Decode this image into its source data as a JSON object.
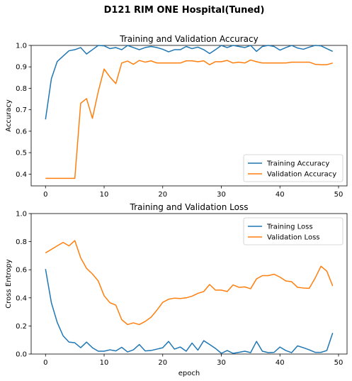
{
  "figure": {
    "suptitle": "D121 RIM ONE Hospital(Tuned)"
  },
  "chart_data": [
    {
      "type": "line",
      "title": "Training and Validation Accuracy",
      "xlabel": "",
      "ylabel": "Accuracy",
      "xlim": [
        -2.45,
        51.45
      ],
      "ylim": [
        0.345,
        1.0
      ],
      "xticks": [
        0,
        10,
        20,
        30,
        40,
        50
      ],
      "yticks": [
        0.4,
        0.5,
        0.6,
        0.7,
        0.8,
        0.9,
        1.0
      ],
      "xtick_labels": [
        "0",
        "10",
        "20",
        "30",
        "40",
        "50"
      ],
      "ytick_labels": [
        "0.4",
        "0.5",
        "0.6",
        "0.7",
        "0.8",
        "0.9",
        "1.0"
      ],
      "legend_position": "lower right",
      "grid": false,
      "series": [
        {
          "name": "Training Accuracy",
          "color": "#1f77b4",
          "x": [
            0,
            1,
            2,
            3,
            4,
            5,
            6,
            7,
            8,
            9,
            10,
            11,
            12,
            13,
            14,
            15,
            16,
            17,
            18,
            19,
            20,
            21,
            22,
            23,
            24,
            25,
            26,
            27,
            28,
            29,
            30,
            31,
            32,
            33,
            34,
            35,
            36,
            37,
            38,
            39,
            40,
            41,
            42,
            43,
            44,
            45,
            46,
            47,
            48,
            49
          ],
          "y": [
            0.655,
            0.845,
            0.925,
            0.95,
            0.975,
            0.98,
            0.99,
            0.96,
            0.98,
            1.0,
            0.998,
            0.985,
            0.99,
            0.98,
            1.0,
            0.99,
            0.98,
            0.99,
            0.995,
            0.99,
            0.982,
            0.97,
            0.98,
            0.98,
            0.995,
            0.985,
            0.992,
            0.98,
            0.962,
            0.98,
            1.0,
            0.99,
            1.0,
            0.995,
            0.99,
            1.0,
            0.972,
            0.995,
            1.0,
            0.995,
            0.978,
            0.99,
            1.0,
            0.988,
            0.982,
            0.992,
            1.0,
            0.998,
            0.985,
            0.972
          ]
        },
        {
          "name": "Validation Accuracy",
          "color": "#ff7f0e",
          "x": [
            0,
            1,
            2,
            3,
            4,
            5,
            6,
            7,
            8,
            9,
            10,
            11,
            12,
            13,
            14,
            15,
            16,
            17,
            18,
            19,
            20,
            21,
            22,
            23,
            24,
            25,
            26,
            27,
            28,
            29,
            30,
            31,
            32,
            33,
            34,
            35,
            36,
            37,
            38,
            39,
            40,
            41,
            42,
            43,
            44,
            45,
            46,
            47,
            48,
            49
          ],
          "y": [
            0.38,
            0.38,
            0.38,
            0.38,
            0.38,
            0.38,
            0.73,
            0.752,
            0.66,
            0.785,
            0.89,
            0.852,
            0.822,
            0.918,
            0.927,
            0.912,
            0.93,
            0.922,
            0.928,
            0.918,
            0.918,
            0.918,
            0.918,
            0.918,
            0.928,
            0.928,
            0.924,
            0.928,
            0.91,
            0.924,
            0.924,
            0.93,
            0.918,
            0.922,
            0.918,
            0.932,
            0.924,
            0.918,
            0.918,
            0.918,
            0.918,
            0.918,
            0.922,
            0.922,
            0.922,
            0.922,
            0.912,
            0.91,
            0.91,
            0.918
          ]
        }
      ]
    },
    {
      "type": "line",
      "title": "Training and Validation Loss",
      "xlabel": "epoch",
      "ylabel": "Cross Entropy",
      "xlim": [
        -2.45,
        51.45
      ],
      "ylim": [
        0.0,
        1.0
      ],
      "xticks": [
        0,
        10,
        20,
        30,
        40,
        50
      ],
      "yticks": [
        0.0,
        0.2,
        0.4,
        0.6,
        0.8,
        1.0
      ],
      "xtick_labels": [
        "0",
        "10",
        "20",
        "30",
        "40",
        "50"
      ],
      "ytick_labels": [
        "0.0",
        "0.2",
        "0.4",
        "0.6",
        "0.8",
        "1.0"
      ],
      "legend_position": "upper right",
      "grid": false,
      "series": [
        {
          "name": "Training Loss",
          "color": "#1f77b4",
          "x": [
            0,
            1,
            2,
            3,
            4,
            5,
            6,
            7,
            8,
            9,
            10,
            11,
            12,
            13,
            14,
            15,
            16,
            17,
            18,
            19,
            20,
            21,
            22,
            23,
            24,
            25,
            26,
            27,
            28,
            29,
            30,
            31,
            32,
            33,
            34,
            35,
            36,
            37,
            38,
            39,
            40,
            41,
            42,
            43,
            44,
            45,
            46,
            47,
            48,
            49
          ],
          "y": [
            0.605,
            0.365,
            0.225,
            0.13,
            0.085,
            0.08,
            0.045,
            0.085,
            0.045,
            0.02,
            0.02,
            0.03,
            0.022,
            0.048,
            0.015,
            0.03,
            0.068,
            0.022,
            0.025,
            0.035,
            0.045,
            0.09,
            0.035,
            0.05,
            0.02,
            0.078,
            0.028,
            0.095,
            0.068,
            0.04,
            0.005,
            0.025,
            0.005,
            0.012,
            0.02,
            0.01,
            0.09,
            0.02,
            0.01,
            0.012,
            0.05,
            0.025,
            0.01,
            0.058,
            0.045,
            0.03,
            0.012,
            0.012,
            0.025,
            0.15
          ]
        },
        {
          "name": "Validation Loss",
          "color": "#ff7f0e",
          "x": [
            0,
            1,
            2,
            3,
            4,
            5,
            6,
            7,
            8,
            9,
            10,
            11,
            12,
            13,
            14,
            15,
            16,
            17,
            18,
            19,
            20,
            21,
            22,
            23,
            24,
            25,
            26,
            27,
            28,
            29,
            30,
            31,
            32,
            33,
            34,
            35,
            36,
            37,
            38,
            39,
            40,
            41,
            42,
            43,
            44,
            45,
            46,
            47,
            48,
            49
          ],
          "y": [
            0.72,
            0.745,
            0.77,
            0.795,
            0.77,
            0.808,
            0.685,
            0.61,
            0.57,
            0.52,
            0.415,
            0.365,
            0.348,
            0.245,
            0.21,
            0.222,
            0.21,
            0.232,
            0.262,
            0.312,
            0.368,
            0.39,
            0.398,
            0.395,
            0.4,
            0.412,
            0.432,
            0.445,
            0.495,
            0.455,
            0.455,
            0.445,
            0.492,
            0.475,
            0.478,
            0.465,
            0.535,
            0.558,
            0.558,
            0.568,
            0.548,
            0.52,
            0.515,
            0.475,
            0.47,
            0.468,
            0.54,
            0.625,
            0.59,
            0.485
          ]
        }
      ]
    }
  ]
}
